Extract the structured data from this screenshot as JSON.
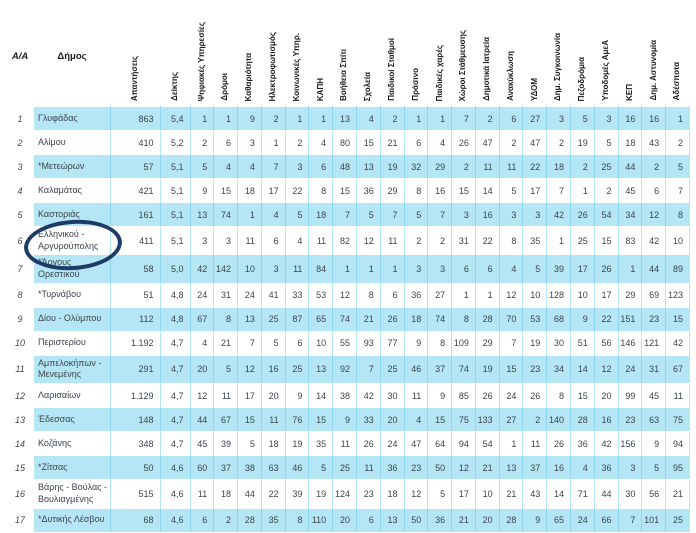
{
  "table": {
    "flat_headers": [
      "Α/Α",
      "Δήμος"
    ],
    "rotated_headers": [
      "Απαντήσεις",
      "Δείκτης",
      "Ψηφιακές Υπηρεσίες",
      "Δρόμοι",
      "Καθαριότητα",
      "Ηλεκτροφωτισμός",
      "Κοινωνικές Υπηρ.",
      "ΚΑΠΗ",
      "Βοήθεια Σπίτι",
      "Σχολεία",
      "Παιδικοί Σταθμοί",
      "Πράσινο",
      "Παιδικές χαρές",
      "Χώροι Στάθμευσης",
      "Δημοτικά Ιατρεία",
      "Ανακύκλωση",
      "ΥΔΟΜ",
      "Δημ. Συγκοινωνία",
      "Πεζοδρόμια",
      "Υποδομές ΑμεΑ",
      "ΚΕΠ",
      "Δημ. Αστυνομία",
      "Αδέσποτα"
    ],
    "rows": [
      {
        "aa": "1",
        "name": "Γλυφάδας",
        "values": [
          "863",
          "5,4",
          "1",
          "1",
          "9",
          "2",
          "1",
          "1",
          "13",
          "4",
          "2",
          "1",
          "1",
          "7",
          "2",
          "6",
          "27",
          "3",
          "5",
          "3",
          "16",
          "16",
          "1"
        ]
      },
      {
        "aa": "2",
        "name": "Αλίμου",
        "values": [
          "410",
          "5,2",
          "2",
          "6",
          "3",
          "1",
          "2",
          "4",
          "80",
          "15",
          "21",
          "6",
          "4",
          "26",
          "47",
          "2",
          "47",
          "2",
          "19",
          "5",
          "18",
          "43",
          "2"
        ]
      },
      {
        "aa": "3",
        "name": "*Μετεώρων",
        "values": [
          "57",
          "5,1",
          "5",
          "4",
          "4",
          "7",
          "3",
          "6",
          "48",
          "13",
          "19",
          "32",
          "29",
          "2",
          "11",
          "11",
          "22",
          "18",
          "2",
          "25",
          "44",
          "2",
          "5"
        ]
      },
      {
        "aa": "4",
        "name": "Καλαμάτας",
        "values": [
          "421",
          "5,1",
          "9",
          "15",
          "18",
          "17",
          "22",
          "8",
          "15",
          "36",
          "29",
          "8",
          "16",
          "15",
          "14",
          "5",
          "17",
          "7",
          "1",
          "2",
          "45",
          "6",
          "7"
        ]
      },
      {
        "aa": "5",
        "name": "Καστοριάς",
        "values": [
          "161",
          "5,1",
          "13",
          "74",
          "1",
          "4",
          "5",
          "18",
          "7",
          "5",
          "7",
          "5",
          "7",
          "3",
          "16",
          "3",
          "3",
          "42",
          "26",
          "54",
          "34",
          "12",
          "8"
        ]
      },
      {
        "aa": "6",
        "name": "Ελληνικού - Αργυρούπολης",
        "values": [
          "411",
          "5,1",
          "3",
          "3",
          "11",
          "6",
          "4",
          "11",
          "82",
          "12",
          "11",
          "2",
          "2",
          "31",
          "22",
          "8",
          "35",
          "1",
          "25",
          "15",
          "83",
          "42",
          "10"
        ]
      },
      {
        "aa": "7",
        "name": "*Άργους Ορεστικού",
        "values": [
          "58",
          "5,0",
          "42",
          "142",
          "10",
          "3",
          "11",
          "84",
          "1",
          "1",
          "1",
          "3",
          "3",
          "6",
          "6",
          "4",
          "5",
          "39",
          "17",
          "26",
          "1",
          "44",
          "89"
        ]
      },
      {
        "aa": "8",
        "name": "*Τυρνάβου",
        "values": [
          "51",
          "4,8",
          "24",
          "31",
          "24",
          "41",
          "33",
          "53",
          "12",
          "8",
          "6",
          "36",
          "27",
          "1",
          "1",
          "12",
          "10",
          "128",
          "10",
          "17",
          "29",
          "69",
          "123"
        ]
      },
      {
        "aa": "9",
        "name": "Δίου - Ολύμπου",
        "values": [
          "112",
          "4,8",
          "67",
          "8",
          "13",
          "25",
          "87",
          "65",
          "74",
          "21",
          "26",
          "18",
          "74",
          "8",
          "28",
          "70",
          "53",
          "68",
          "9",
          "22",
          "151",
          "23",
          "15"
        ]
      },
      {
        "aa": "10",
        "name": "Περιστερίου",
        "values": [
          "1.192",
          "4,7",
          "4",
          "21",
          "7",
          "5",
          "6",
          "10",
          "55",
          "93",
          "77",
          "9",
          "8",
          "109",
          "29",
          "7",
          "19",
          "30",
          "51",
          "56",
          "146",
          "121",
          "42"
        ]
      },
      {
        "aa": "11",
        "name": "Αμπελοκήπων - Μενεμένης",
        "values": [
          "291",
          "4,7",
          "20",
          "5",
          "12",
          "16",
          "25",
          "13",
          "92",
          "7",
          "25",
          "46",
          "37",
          "74",
          "19",
          "15",
          "23",
          "34",
          "14",
          "12",
          "24",
          "31",
          "67"
        ]
      },
      {
        "aa": "12",
        "name": "Λαρισαίων",
        "values": [
          "1.129",
          "4,7",
          "12",
          "11",
          "17",
          "20",
          "9",
          "14",
          "38",
          "42",
          "30",
          "11",
          "9",
          "85",
          "26",
          "24",
          "26",
          "8",
          "15",
          "20",
          "99",
          "45",
          "11"
        ]
      },
      {
        "aa": "13",
        "name": "Έδεσσας",
        "values": [
          "148",
          "4,7",
          "44",
          "67",
          "15",
          "11",
          "76",
          "15",
          "9",
          "33",
          "20",
          "4",
          "15",
          "75",
          "133",
          "27",
          "2",
          "140",
          "28",
          "16",
          "23",
          "63",
          "75"
        ]
      },
      {
        "aa": "14",
        "name": "Κοζάνης",
        "values": [
          "348",
          "4,7",
          "45",
          "39",
          "5",
          "18",
          "19",
          "35",
          "11",
          "26",
          "24",
          "47",
          "64",
          "94",
          "54",
          "1",
          "11",
          "26",
          "36",
          "42",
          "156",
          "9",
          "94"
        ]
      },
      {
        "aa": "15",
        "name": "*Ζίτσας",
        "values": [
          "50",
          "4,6",
          "60",
          "37",
          "38",
          "63",
          "46",
          "5",
          "25",
          "11",
          "36",
          "23",
          "50",
          "12",
          "21",
          "13",
          "37",
          "16",
          "4",
          "36",
          "3",
          "5",
          "95"
        ]
      },
      {
        "aa": "16",
        "name": "Βάρης - Βούλας - Βουλιαγμένης",
        "values": [
          "515",
          "4,6",
          "11",
          "18",
          "44",
          "22",
          "39",
          "19",
          "124",
          "23",
          "18",
          "12",
          "5",
          "17",
          "10",
          "21",
          "43",
          "14",
          "71",
          "44",
          "30",
          "56",
          "21"
        ]
      },
      {
        "aa": "17",
        "name": "*Δυτικής Λέσβου",
        "values": [
          "68",
          "4,6",
          "6",
          "2",
          "28",
          "35",
          "8",
          "110",
          "20",
          "6",
          "13",
          "50",
          "36",
          "21",
          "20",
          "28",
          "9",
          "65",
          "24",
          "66",
          "7",
          "101",
          "25"
        ]
      }
    ]
  },
  "annotation": {
    "type": "ellipse",
    "circled_row_aa": "6",
    "circled_name": "Ελληνικού - Αργυρούπολης",
    "color": "#1e3a66"
  },
  "colors": {
    "band_row": "#b5e6f5",
    "plain_row": "#ffffff",
    "band_border": "#8fd5ee",
    "plain_border": "#b5e6f5",
    "text": "#3c434c",
    "header_text": "#1c1c1c"
  }
}
